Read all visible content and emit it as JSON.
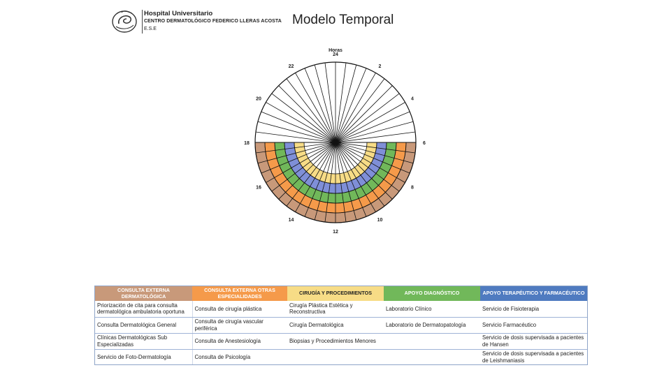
{
  "header": {
    "hospital_line1": "Hospital Universitario",
    "hospital_line2": "CENTRO DERMATOLÓGICO FEDERICO LLERAS ACOSTA",
    "hospital_line3": "E.S.E",
    "title": "Modelo Temporal"
  },
  "clock": {
    "axis_title": "Horas",
    "hour_labels": [
      "24",
      "2",
      "4",
      "6",
      "8",
      "10",
      "12",
      "14",
      "16",
      "18",
      "20",
      "22"
    ],
    "ring_colors": [
      "#c8997a",
      "#f59a4a",
      "#71b85a",
      "#7f8fd8",
      "#f7dc86"
    ],
    "ring_inner_colors": [
      "#f59a4a",
      "#71b85a",
      "#7f8fd8"
    ],
    "line_color": "#111111"
  },
  "table": {
    "headers": [
      {
        "label": "CONSULTA EXTERNA DERMATOLÓGICA",
        "bg": "#c8997a",
        "fg": "#ffffff"
      },
      {
        "label": "CONSULTA EXTERNA OTRAS ESPECIALIDADES",
        "bg": "#f59a4a",
        "fg": "#ffffff"
      },
      {
        "label": "CIRUGÍA Y PROCEDIMIENTOS",
        "bg": "#f7dc86",
        "fg": "#222222"
      },
      {
        "label": "APOYO DIAGNÓSTICO",
        "bg": "#71b85a",
        "fg": "#ffffff"
      },
      {
        "label": "APOYO TERAPÉUTICO Y FARMACÉUTICO",
        "bg": "#4f7bc0",
        "fg": "#ffffff"
      }
    ],
    "rows": [
      [
        "Priorización de cita para consulta dermatológica ambulatoria oportuna",
        "Consulta de cirugía plástica",
        "Cirugía Plástica Estética y Reconstructiva",
        "Laboratorio Clínico",
        "Servicio de Fisioterapia"
      ],
      [
        "Consulta Dermatológica General",
        "Consulta de cirugía vascular periférica",
        "Cirugía Dermatológica",
        "Laboratorio de Dermatopatología",
        "Servicio Farmacéutico"
      ],
      [
        "Clínicas Dermatológicas Sub Especializadas",
        "Consulta de Anestesiología",
        "Biopsias y Procedimientos Menores",
        "",
        "Servicio de dosis supervisada a pacientes de Hansen"
      ],
      [
        "Servicio de Foto-Dermatología",
        "Consulta de Psicología",
        "",
        "",
        "Servicio de dosis supervisada a pacientes de Leishmaniasis"
      ]
    ]
  }
}
